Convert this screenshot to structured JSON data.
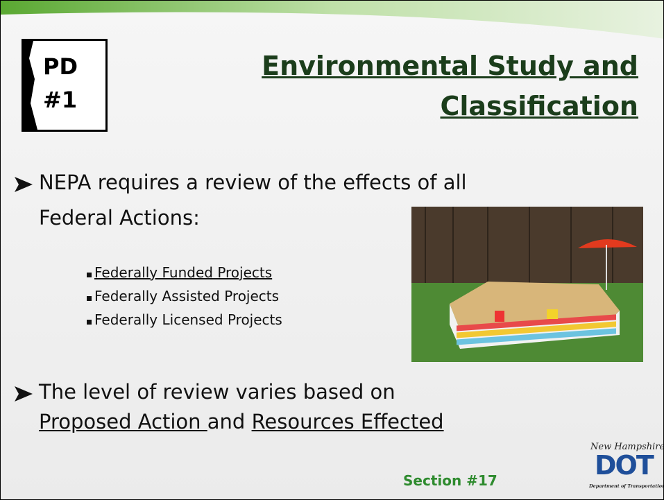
{
  "badge": {
    "line1": "PD",
    "line2": "#1"
  },
  "title": {
    "lines": [
      "Environmental Study and",
      "Classification"
    ]
  },
  "bullets": [
    {
      "lines": [
        "NEPA requires a review of the effects of all",
        "Federal Actions:"
      ],
      "sub_bullets": [
        "Federally Funded Projects",
        "Federally Assisted Projects",
        "Federally Licensed Projects"
      ]
    },
    {
      "line1": "The level of review varies based on",
      "parts": [
        "Proposed Action ",
        "and ",
        "Resources Effected"
      ]
    }
  ],
  "footer": {
    "section": "Section #17"
  },
  "logo": {
    "top": "New Hampshire",
    "mark": "DOT",
    "bottom": "Department of Transportation"
  }
}
